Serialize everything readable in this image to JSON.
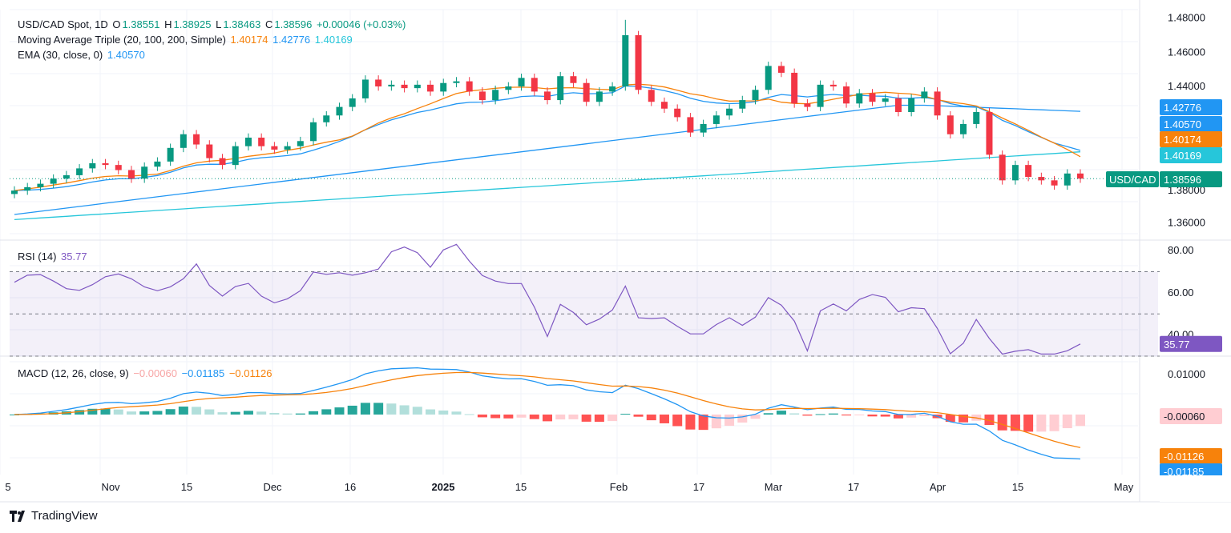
{
  "legend": {
    "symbol_line": "USD/CAD Spot, 1D",
    "o_label": "O",
    "o_value": "1.38551",
    "h_label": "H",
    "h_value": "1.38925",
    "l_label": "L",
    "l_value": "1.38463",
    "c_label": "C",
    "c_value": "1.38596",
    "change": "+0.00046 (+0.03%)",
    "ma_label": "Moving Average Triple (20, 100, 200, Simple)",
    "ma20": "1.40174",
    "ma100": "1.42776",
    "ma200": "1.40169",
    "ema_label": "EMA (30, close, 0)",
    "ema": "1.40570",
    "rsi_label": "RSI (14)",
    "rsi_value": "35.77",
    "macd_label": "MACD (12, 26, close, 9)",
    "macd_hist": "−0.00060",
    "macd_line": "−0.01185",
    "macd_signal": "−0.01126"
  },
  "price_badges": {
    "ma100": "1.42776",
    "ema": "1.40570",
    "ma20": "1.40174",
    "ma200": "1.40169",
    "symbol": "USD/CAD",
    "last": "1.38596"
  },
  "rsi_badge": "35.77",
  "macd_badges": {
    "hist": "-0.00060",
    "signal": "-0.01126",
    "line": "-0.01185"
  },
  "footer": {
    "brand": "TradingView"
  },
  "colors": {
    "up": "#089981",
    "down": "#f23645",
    "ma20": "#f7820b",
    "ma100": "#2196f3",
    "ma200": "#26c6da",
    "ema": "#2196f3",
    "rsi": "#7e57c2",
    "macd": "#2196f3",
    "signal": "#f7820b"
  },
  "chart_data": [
    {
      "type": "candlestick",
      "title": "USD/CAD Spot, 1D",
      "ylim": [
        1.35,
        1.485
      ],
      "y_ticks": [
        "1.48000",
        "1.46000",
        "1.44000",
        "1.36000"
      ],
      "x_ticks": [
        "5",
        "Nov",
        "15",
        "Dec",
        "16",
        "2025",
        "15",
        "Feb",
        "17",
        "Mar",
        "17",
        "Apr",
        "15",
        "May"
      ],
      "series": [
        {
          "name": "Candles",
          "approx_closes": [
            1.379,
            1.381,
            1.383,
            1.386,
            1.388,
            1.392,
            1.395,
            1.394,
            1.391,
            1.386,
            1.393,
            1.396,
            1.404,
            1.412,
            1.406,
            1.398,
            1.394,
            1.405,
            1.41,
            1.405,
            1.403,
            1.405,
            1.408,
            1.419,
            1.423,
            1.428,
            1.433,
            1.444,
            1.44,
            1.441,
            1.439,
            1.441,
            1.437,
            1.442,
            1.443,
            1.437,
            1.432,
            1.438,
            1.44,
            1.445,
            1.437,
            1.432,
            1.446,
            1.442,
            1.431,
            1.437,
            1.44,
            1.47,
            1.438,
            1.431,
            1.427,
            1.422,
            1.413,
            1.418,
            1.423,
            1.427,
            1.432,
            1.438,
            1.452,
            1.448,
            1.43,
            1.428,
            1.441,
            1.44,
            1.43,
            1.436,
            1.431,
            1.433,
            1.425,
            1.433,
            1.437,
            1.423,
            1.412,
            1.418,
            1.425,
            1.4,
            1.385,
            1.394,
            1.387,
            1.385,
            1.382,
            1.389,
            1.386
          ]
        },
        {
          "name": "MA20",
          "last": 1.40174
        },
        {
          "name": "MA100",
          "last": 1.42776
        },
        {
          "name": "MA200",
          "last": 1.40169
        },
        {
          "name": "EMA30",
          "last": 1.4057
        }
      ]
    },
    {
      "type": "line",
      "title": "RSI (14)",
      "ylim": [
        30,
        85
      ],
      "y_ticks": [
        "80.00",
        "60.00",
        "40.00"
      ],
      "bands": [
        30,
        50,
        70
      ],
      "series": [
        {
          "name": "RSI",
          "last": 35.77
        }
      ]
    },
    {
      "type": "bar",
      "title": "MACD (12, 26, close, 9)",
      "y_ticks": [
        "0.01000"
      ],
      "series": [
        {
          "name": "Histogram",
          "last": -0.0006
        },
        {
          "name": "MACD",
          "last": -0.01185
        },
        {
          "name": "Signal",
          "last": -0.01126
        }
      ]
    }
  ]
}
